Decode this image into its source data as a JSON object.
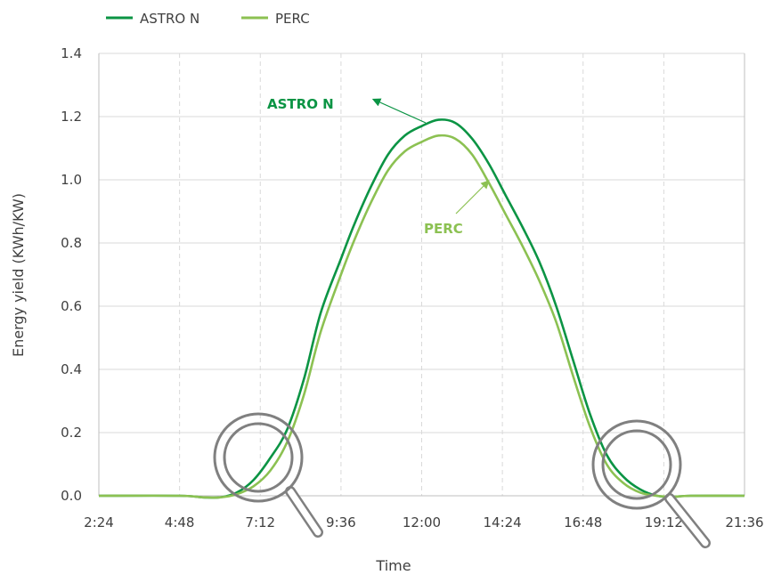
{
  "colors": {
    "astro": "#0b9444",
    "perc": "#8cc152",
    "grid": "#d9d9d9",
    "axis": "#bfbfbf",
    "magnifier": "#808080"
  },
  "legend": [
    {
      "label": "ASTRO N",
      "color": "#0b9444"
    },
    {
      "label": "PERC",
      "color": "#8cc152"
    }
  ],
  "annotations": {
    "astro": "ASTRO N",
    "perc": "PERC"
  },
  "icons": [
    "magnifier-icon",
    "magnifier-icon"
  ],
  "chart_data": {
    "type": "line",
    "xlabel": "Time",
    "ylabel": "Energy yield (KWh/KW)",
    "xlim": [
      "2:24",
      "21:36"
    ],
    "ylim": [
      0,
      1.4
    ],
    "x_ticks": [
      "2:24",
      "4:48",
      "7:12",
      "9:36",
      "12:00",
      "14:24",
      "16:48",
      "19:12",
      "21:36"
    ],
    "y_ticks": [
      "0.0",
      "0.2",
      "0.4",
      "0.6",
      "0.8",
      "1.0",
      "1.2",
      "1.4"
    ],
    "grid": {
      "y": "solid",
      "x": "dashed"
    },
    "legend_position": "top-left",
    "series": [
      {
        "name": "ASTRO N",
        "color": "#0b9444",
        "points": [
          [
            "2:24",
            0.0
          ],
          [
            "4:48",
            0.0
          ],
          [
            "5:30",
            -0.005
          ],
          [
            "6:00",
            -0.005
          ],
          [
            "6:30",
            0.01
          ],
          [
            "7:00",
            0.05
          ],
          [
            "7:30",
            0.12
          ],
          [
            "8:00",
            0.21
          ],
          [
            "8:30",
            0.37
          ],
          [
            "9:00",
            0.58
          ],
          [
            "9:36",
            0.75
          ],
          [
            "10:00",
            0.86
          ],
          [
            "10:30",
            0.98
          ],
          [
            "11:00",
            1.08
          ],
          [
            "11:30",
            1.14
          ],
          [
            "12:00",
            1.17
          ],
          [
            "12:30",
            1.19
          ],
          [
            "13:00",
            1.18
          ],
          [
            "13:30",
            1.13
          ],
          [
            "14:00",
            1.05
          ],
          [
            "14:30",
            0.95
          ],
          [
            "15:00",
            0.85
          ],
          [
            "15:30",
            0.74
          ],
          [
            "16:00",
            0.6
          ],
          [
            "16:30",
            0.43
          ],
          [
            "17:00",
            0.26
          ],
          [
            "17:30",
            0.13
          ],
          [
            "18:00",
            0.06
          ],
          [
            "18:30",
            0.02
          ],
          [
            "19:00",
            0.0
          ],
          [
            "19:30",
            -0.003
          ],
          [
            "20:00",
            0.0
          ],
          [
            "21:36",
            0.0
          ]
        ]
      },
      {
        "name": "PERC",
        "color": "#8cc152",
        "points": [
          [
            "2:24",
            0.0
          ],
          [
            "4:48",
            0.0
          ],
          [
            "5:30",
            -0.005
          ],
          [
            "6:00",
            -0.005
          ],
          [
            "6:30",
            0.005
          ],
          [
            "7:00",
            0.03
          ],
          [
            "7:30",
            0.08
          ],
          [
            "8:00",
            0.17
          ],
          [
            "8:30",
            0.32
          ],
          [
            "9:00",
            0.52
          ],
          [
            "9:36",
            0.7
          ],
          [
            "10:00",
            0.81
          ],
          [
            "10:30",
            0.93
          ],
          [
            "11:00",
            1.03
          ],
          [
            "11:30",
            1.09
          ],
          [
            "12:00",
            1.12
          ],
          [
            "12:30",
            1.14
          ],
          [
            "13:00",
            1.13
          ],
          [
            "13:30",
            1.08
          ],
          [
            "14:00",
            0.99
          ],
          [
            "14:30",
            0.89
          ],
          [
            "15:00",
            0.79
          ],
          [
            "15:30",
            0.68
          ],
          [
            "16:00",
            0.55
          ],
          [
            "16:30",
            0.38
          ],
          [
            "17:00",
            0.22
          ],
          [
            "17:30",
            0.1
          ],
          [
            "18:00",
            0.04
          ],
          [
            "18:30",
            0.01
          ],
          [
            "19:00",
            0.0
          ],
          [
            "19:30",
            -0.003
          ],
          [
            "20:00",
            0.0
          ],
          [
            "21:36",
            0.0
          ]
        ]
      }
    ]
  }
}
